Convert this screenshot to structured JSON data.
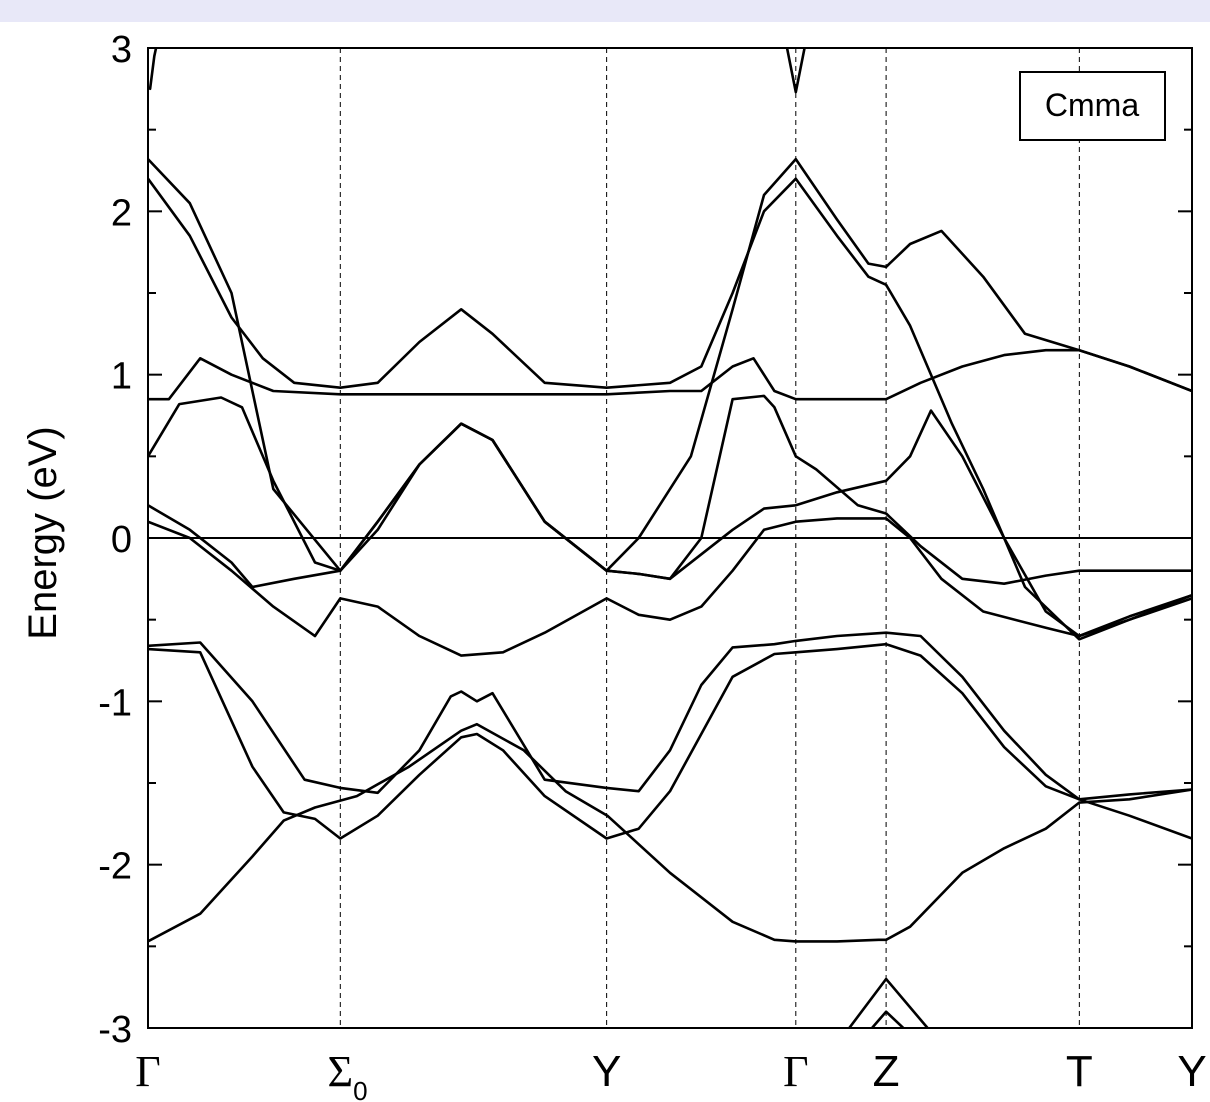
{
  "chart_data": {
    "type": "line",
    "title": "",
    "ylabel": "Energy (eV)",
    "xlabel": "",
    "ylim": [
      -3,
      3
    ],
    "y_ticks": [
      "-3",
      "-2",
      "-1",
      "0",
      "1",
      "2",
      "3"
    ],
    "y_tick_values": [
      -3,
      -2,
      -1,
      0,
      1,
      2,
      3
    ],
    "legend": {
      "text": "Cmma",
      "placement": "top-right"
    },
    "fermi_level": 0,
    "grid": false,
    "line_color": "#000000",
    "kpoints": [
      {
        "label": "Γ",
        "sub": "",
        "x": 0.0
      },
      {
        "label": "Σ",
        "sub": "0",
        "x": 0.1842
      },
      {
        "label": "Y",
        "sub": "",
        "x": 0.4393
      },
      {
        "label": "Γ",
        "sub": "",
        "x": 0.6205
      },
      {
        "label": "Z",
        "sub": "",
        "x": 0.707
      },
      {
        "label": "T",
        "sub": "",
        "x": 0.8921
      },
      {
        "label": "Y",
        "sub": "",
        "x": 1.0
      }
    ],
    "series": [
      {
        "points": [
          [
            0.0,
            -2.47
          ],
          [
            0.05,
            -2.3
          ],
          [
            0.1,
            -1.95
          ],
          [
            0.13,
            -1.73
          ],
          [
            0.16,
            -1.65
          ],
          [
            0.2,
            -1.58
          ],
          [
            0.25,
            -1.4
          ],
          [
            0.3,
            -1.18
          ],
          [
            0.315,
            -1.14
          ],
          [
            0.36,
            -1.3
          ],
          [
            0.4,
            -1.55
          ],
          [
            0.44,
            -1.7
          ],
          [
            0.5,
            -2.05
          ],
          [
            0.56,
            -2.35
          ],
          [
            0.6,
            -2.46
          ],
          [
            0.6205,
            -2.47
          ],
          [
            0.66,
            -2.47
          ],
          [
            0.7,
            -2.46
          ],
          [
            0.707,
            -2.46
          ],
          [
            0.73,
            -2.38
          ],
          [
            0.78,
            -2.05
          ],
          [
            0.82,
            -1.9
          ],
          [
            0.86,
            -1.78
          ],
          [
            0.892,
            -1.62
          ],
          [
            0.94,
            -1.6
          ],
          [
            1.0,
            -1.54
          ]
        ]
      },
      {
        "points": [
          [
            0.0,
            -0.68
          ],
          [
            0.05,
            -0.7
          ],
          [
            0.1,
            -1.4
          ],
          [
            0.13,
            -1.68
          ],
          [
            0.16,
            -1.72
          ],
          [
            0.1842,
            -1.84
          ],
          [
            0.22,
            -1.7
          ],
          [
            0.26,
            -1.45
          ],
          [
            0.3,
            -1.22
          ],
          [
            0.315,
            -1.2
          ],
          [
            0.34,
            -1.3
          ],
          [
            0.38,
            -1.58
          ],
          [
            0.4393,
            -1.84
          ],
          [
            0.47,
            -1.78
          ],
          [
            0.5,
            -1.55
          ],
          [
            0.53,
            -1.2
          ],
          [
            0.56,
            -0.85
          ],
          [
            0.6,
            -0.71
          ],
          [
            0.6205,
            -0.7
          ],
          [
            0.66,
            -0.68
          ],
          [
            0.707,
            -0.65
          ],
          [
            0.74,
            -0.72
          ],
          [
            0.78,
            -0.95
          ],
          [
            0.82,
            -1.28
          ],
          [
            0.86,
            -1.52
          ],
          [
            0.892,
            -1.6
          ],
          [
            0.94,
            -1.7
          ],
          [
            1.0,
            -1.84
          ]
        ]
      },
      {
        "points": [
          [
            0.0,
            -0.66
          ],
          [
            0.05,
            -0.64
          ],
          [
            0.1,
            -1.0
          ],
          [
            0.15,
            -1.48
          ],
          [
            0.1842,
            -1.53
          ],
          [
            0.22,
            -1.56
          ],
          [
            0.26,
            -1.3
          ],
          [
            0.29,
            -0.97
          ],
          [
            0.3,
            -0.94
          ],
          [
            0.315,
            -1.0
          ],
          [
            0.33,
            -0.95
          ],
          [
            0.38,
            -1.48
          ],
          [
            0.4393,
            -1.53
          ],
          [
            0.47,
            -1.55
          ],
          [
            0.5,
            -1.3
          ],
          [
            0.53,
            -0.9
          ],
          [
            0.56,
            -0.67
          ],
          [
            0.6,
            -0.65
          ],
          [
            0.6205,
            -0.63
          ],
          [
            0.66,
            -0.6
          ],
          [
            0.707,
            -0.58
          ],
          [
            0.74,
            -0.6
          ],
          [
            0.78,
            -0.85
          ],
          [
            0.82,
            -1.18
          ],
          [
            0.86,
            -1.45
          ],
          [
            0.892,
            -1.6
          ],
          [
            0.94,
            -1.57
          ],
          [
            1.0,
            -1.54
          ]
        ]
      },
      {
        "points": [
          [
            0.0,
            0.1
          ],
          [
            0.04,
            0.0
          ],
          [
            0.08,
            -0.2
          ],
          [
            0.12,
            -0.42
          ],
          [
            0.16,
            -0.6
          ],
          [
            0.1842,
            -0.37
          ],
          [
            0.22,
            -0.42
          ],
          [
            0.26,
            -0.6
          ],
          [
            0.3,
            -0.72
          ],
          [
            0.34,
            -0.7
          ],
          [
            0.38,
            -0.58
          ],
          [
            0.4393,
            -0.37
          ],
          [
            0.47,
            -0.47
          ],
          [
            0.5,
            -0.5
          ],
          [
            0.53,
            -0.42
          ],
          [
            0.56,
            -0.2
          ],
          [
            0.59,
            0.05
          ],
          [
            0.6205,
            0.1
          ],
          [
            0.66,
            0.12
          ],
          [
            0.707,
            0.12
          ],
          [
            0.73,
            0.0
          ],
          [
            0.76,
            -0.25
          ],
          [
            0.8,
            -0.45
          ],
          [
            0.86,
            -0.55
          ],
          [
            0.892,
            -0.6
          ],
          [
            0.94,
            -0.48
          ],
          [
            1.0,
            -0.35
          ]
        ]
      },
      {
        "points": [
          [
            0.0,
            0.2
          ],
          [
            0.04,
            0.05
          ],
          [
            0.08,
            -0.15
          ],
          [
            0.1,
            -0.3
          ],
          [
            0.14,
            -0.25
          ],
          [
            0.1842,
            -0.2
          ],
          [
            0.22,
            0.1
          ],
          [
            0.26,
            0.45
          ],
          [
            0.3,
            0.7
          ],
          [
            0.33,
            0.6
          ],
          [
            0.38,
            0.1
          ],
          [
            0.4393,
            -0.2
          ],
          [
            0.47,
            -0.22
          ],
          [
            0.5,
            -0.25
          ],
          [
            0.53,
            -0.1
          ],
          [
            0.56,
            0.05
          ],
          [
            0.59,
            0.18
          ],
          [
            0.6205,
            0.2
          ],
          [
            0.66,
            0.28
          ],
          [
            0.707,
            0.35
          ],
          [
            0.73,
            0.5
          ],
          [
            0.75,
            0.78
          ],
          [
            0.78,
            0.5
          ],
          [
            0.82,
            0.0
          ],
          [
            0.86,
            -0.45
          ],
          [
            0.892,
            -0.6
          ],
          [
            0.94,
            -0.5
          ],
          [
            1.0,
            -0.35
          ]
        ]
      },
      {
        "points": [
          [
            0.0,
            0.5
          ],
          [
            0.03,
            0.82
          ],
          [
            0.07,
            0.86
          ],
          [
            0.09,
            0.8
          ],
          [
            0.12,
            0.35
          ],
          [
            0.16,
            -0.15
          ],
          [
            0.1842,
            -0.2
          ],
          [
            0.22,
            0.1
          ],
          [
            0.26,
            0.45
          ],
          [
            0.3,
            0.7
          ],
          [
            0.33,
            0.6
          ],
          [
            0.38,
            0.1
          ],
          [
            0.4393,
            -0.2
          ],
          [
            0.47,
            -0.22
          ],
          [
            0.5,
            -0.25
          ],
          [
            0.53,
            0.0
          ],
          [
            0.56,
            0.85
          ],
          [
            0.59,
            0.87
          ],
          [
            0.6,
            0.8
          ],
          [
            0.6205,
            0.5
          ],
          [
            0.64,
            0.42
          ],
          [
            0.68,
            0.2
          ],
          [
            0.707,
            0.15
          ],
          [
            0.74,
            -0.05
          ],
          [
            0.78,
            -0.25
          ],
          [
            0.82,
            -0.28
          ],
          [
            0.86,
            -0.23
          ],
          [
            0.892,
            -0.2
          ],
          [
            1.0,
            -0.2
          ]
        ]
      },
      {
        "points": [
          [
            0.0,
            0.85
          ],
          [
            0.02,
            0.85
          ],
          [
            0.05,
            1.1
          ],
          [
            0.08,
            1.0
          ],
          [
            0.12,
            0.9
          ],
          [
            0.1842,
            0.88
          ],
          [
            0.22,
            0.88
          ],
          [
            0.26,
            0.88
          ],
          [
            0.3,
            0.88
          ],
          [
            0.34,
            0.88
          ],
          [
            0.38,
            0.88
          ],
          [
            0.4393,
            0.88
          ],
          [
            0.5,
            0.9
          ],
          [
            0.53,
            0.9
          ],
          [
            0.56,
            1.05
          ],
          [
            0.58,
            1.1
          ],
          [
            0.6,
            0.9
          ],
          [
            0.6205,
            0.85
          ],
          [
            0.66,
            0.85
          ],
          [
            0.707,
            0.85
          ],
          [
            0.74,
            0.95
          ],
          [
            0.78,
            1.05
          ],
          [
            0.82,
            1.12
          ],
          [
            0.86,
            1.15
          ],
          [
            0.892,
            1.15
          ],
          [
            0.94,
            1.05
          ],
          [
            1.0,
            0.9
          ]
        ]
      },
      {
        "points": [
          [
            0.0,
            2.2
          ],
          [
            0.04,
            1.85
          ],
          [
            0.08,
            1.35
          ],
          [
            0.11,
            1.1
          ],
          [
            0.14,
            0.95
          ],
          [
            0.1842,
            0.92
          ],
          [
            0.22,
            0.95
          ],
          [
            0.26,
            1.2
          ],
          [
            0.3,
            1.4
          ],
          [
            0.33,
            1.25
          ],
          [
            0.38,
            0.95
          ],
          [
            0.4393,
            0.92
          ],
          [
            0.5,
            0.95
          ],
          [
            0.53,
            1.05
          ],
          [
            0.56,
            1.5
          ],
          [
            0.59,
            2.0
          ],
          [
            0.6205,
            2.2
          ],
          [
            0.66,
            1.85
          ],
          [
            0.69,
            1.6
          ],
          [
            0.707,
            1.55
          ],
          [
            0.73,
            1.3
          ],
          [
            0.77,
            0.7
          ],
          [
            0.8,
            0.3
          ],
          [
            0.84,
            -0.3
          ],
          [
            0.892,
            -0.62
          ],
          [
            0.94,
            -0.5
          ],
          [
            1.0,
            -0.37
          ]
        ]
      },
      {
        "points": [
          [
            0.0,
            2.32
          ],
          [
            0.04,
            2.05
          ],
          [
            0.08,
            1.5
          ],
          [
            0.12,
            0.3
          ],
          [
            0.1842,
            -0.2
          ],
          [
            0.22,
            0.05
          ],
          [
            0.26,
            0.45
          ],
          [
            0.3,
            0.7
          ],
          [
            0.33,
            0.6
          ],
          [
            0.38,
            0.1
          ],
          [
            0.4393,
            -0.2
          ],
          [
            0.47,
            0.0
          ],
          [
            0.52,
            0.5
          ],
          [
            0.56,
            1.4
          ],
          [
            0.59,
            2.1
          ],
          [
            0.6205,
            2.32
          ],
          [
            0.66,
            1.95
          ],
          [
            0.69,
            1.68
          ],
          [
            0.707,
            1.66
          ],
          [
            0.73,
            1.8
          ],
          [
            0.76,
            1.88
          ],
          [
            0.8,
            1.6
          ],
          [
            0.84,
            1.25
          ],
          [
            0.892,
            1.15
          ],
          [
            0.94,
            1.05
          ],
          [
            1.0,
            0.9
          ]
        ]
      },
      {
        "points": [
          [
            0.002,
            2.75
          ],
          [
            0.006,
            2.95
          ],
          [
            0.011,
            3.1
          ]
        ]
      },
      {
        "points": [
          [
            0.609,
            3.1
          ],
          [
            0.6205,
            2.73
          ],
          [
            0.632,
            3.1
          ]
        ]
      },
      {
        "points": [
          [
            0.66,
            -3.1
          ],
          [
            0.707,
            -2.7
          ],
          [
            0.76,
            -3.1
          ]
        ]
      },
      {
        "points": [
          [
            0.68,
            -3.1
          ],
          [
            0.707,
            -2.9
          ],
          [
            0.74,
            -3.1
          ]
        ]
      }
    ]
  }
}
